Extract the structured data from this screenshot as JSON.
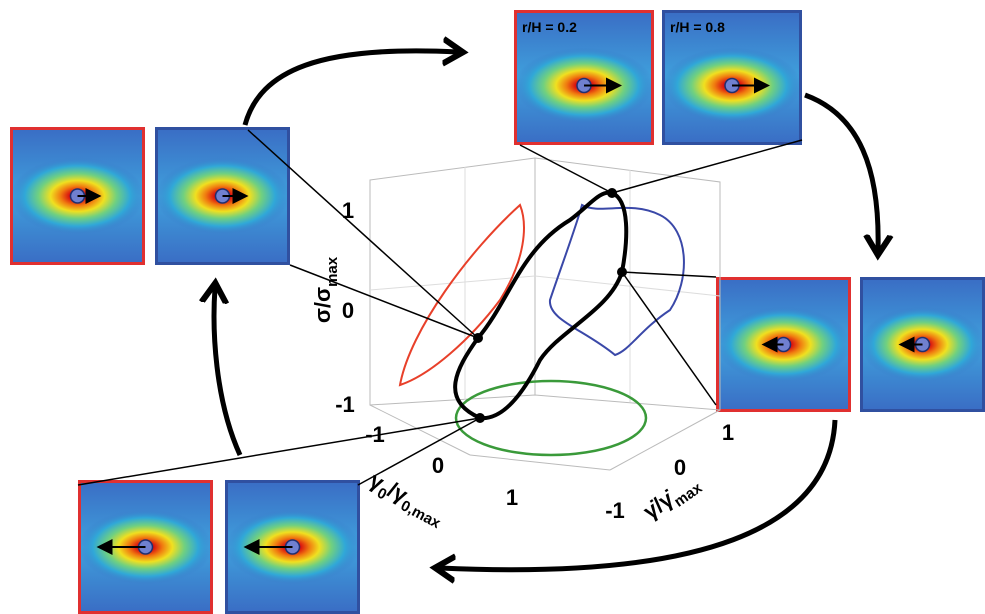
{
  "panel_labels": [
    "r/H = 0.2",
    "r/H = 0.8"
  ],
  "axes": {
    "stress": {
      "main": "σ/σ",
      "sub": "max",
      "ticks": [
        1,
        0,
        -1
      ]
    },
    "strain": {
      "main": "γ",
      "sub": "0",
      "main2": "/γ",
      "sub2": "0,max",
      "ticks": [
        -1,
        0,
        1
      ]
    },
    "rate": {
      "main": "γ̇/γ̇",
      "sub": "max",
      "ticks": [
        1,
        0,
        -1
      ]
    }
  }
}
